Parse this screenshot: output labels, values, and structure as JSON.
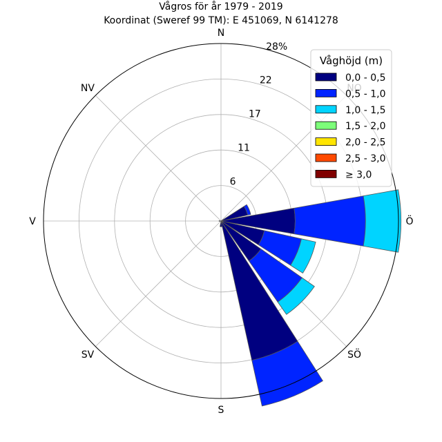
{
  "chart_data": {
    "type": "polar-bar",
    "title": "Vågros för år 1979 - 2019",
    "subtitle": "Koordinat (Sweref 99 TM): E 451069, N 6141278",
    "directions": [
      "N",
      "NO",
      "Ö",
      "SÖ",
      "S",
      "SV",
      "V",
      "NV"
    ],
    "radial_ticks": [
      "6",
      "11",
      "17",
      "22",
      "28%"
    ],
    "radial_tick_values": [
      5.6,
      11.2,
      16.8,
      22.4,
      28.0
    ],
    "rmax": 28.0,
    "legend_title": "Våghöjd (m)",
    "bins": [
      "0,0 - 0,5",
      "0,5 - 1,0",
      "1,0 - 1,5",
      "1,5 - 2,0",
      "2,0 - 2,5",
      "2,5 - 3,0",
      "≥ 3,0"
    ],
    "colors": [
      "#000080",
      "#0024ff",
      "#00d4ff",
      "#7dff7a",
      "#ffe500",
      "#ff4a00",
      "#800000"
    ],
    "sectors": [
      {
        "direction_deg": 67.5,
        "values": [
          4.3,
          0.5
        ]
      },
      {
        "direction_deg": 90,
        "values": [
          11.7,
          11.1,
          5.6
        ]
      },
      {
        "direction_deg": 112.5,
        "values": [
          7.0,
          6.0,
          2.3
        ]
      },
      {
        "direction_deg": 135,
        "values": [
          7.7,
          7.9,
          2.4
        ]
      },
      {
        "direction_deg": 157.5,
        "values": [
          22.5,
          7.4
        ]
      },
      {
        "direction_deg": 180,
        "values": [
          0.9
        ]
      },
      {
        "direction_deg": 270,
        "values": [
          0.3
        ]
      }
    ],
    "sector_width_deg": 20,
    "grid": true
  }
}
